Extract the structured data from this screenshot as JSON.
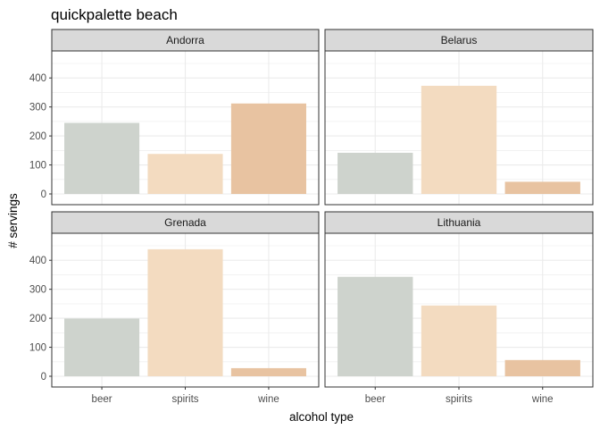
{
  "chart_data": {
    "type": "bar",
    "title": "quickpalette beach",
    "xlabel": "alcohol type",
    "ylabel": "# servings",
    "ylim": [
      0,
      450
    ],
    "yticks": [
      "0",
      "100",
      "200",
      "300",
      "400"
    ],
    "categories": [
      "beer",
      "spirits",
      "wine"
    ],
    "bar_colors": [
      "#ced3cd",
      "#f3dbc0",
      "#e8c3a1"
    ],
    "panel_background": "#ffffff",
    "grid_color": "#ebebeb",
    "strip_color": "#d9d9d9",
    "grid": true,
    "legend": "none",
    "facets": [
      {
        "name": "Andorra",
        "values": [
          245,
          138,
          312
        ]
      },
      {
        "name": "Belarus",
        "values": [
          142,
          373,
          42
        ]
      },
      {
        "name": "Grenada",
        "values": [
          199,
          438,
          28
        ]
      },
      {
        "name": "Lithuania",
        "values": [
          343,
          244,
          56
        ]
      }
    ]
  }
}
